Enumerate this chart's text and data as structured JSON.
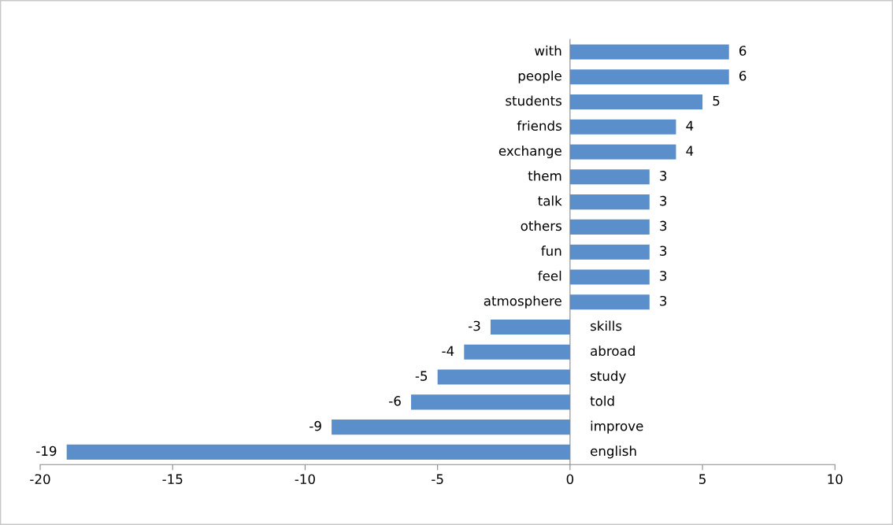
{
  "chart_data": {
    "type": "bar",
    "orientation": "horizontal",
    "categories": [
      "with",
      "people",
      "students",
      "friends",
      "exchange",
      "them",
      "talk",
      "others",
      "fun",
      "feel",
      "atmosphere",
      "skills",
      "abroad",
      "study",
      "told",
      "improve",
      "english"
    ],
    "values": [
      6,
      6,
      5,
      4,
      4,
      3,
      3,
      3,
      3,
      3,
      3,
      -3,
      -4,
      -5,
      -6,
      -9,
      -19
    ],
    "color": "#5b8fcb",
    "xlim": [
      -20,
      10
    ],
    "xticks": [
      -20,
      -15,
      -10,
      -5,
      0,
      5,
      10
    ],
    "data_labels": true,
    "grid": false,
    "legend": false
  }
}
